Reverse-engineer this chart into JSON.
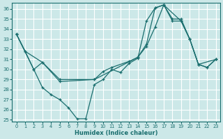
{
  "xlabel": "Humidex (Indice chaleur)",
  "bg_color": "#cce8e8",
  "grid_color": "#ffffff",
  "line_color": "#1a6e6e",
  "xlim": [
    -0.5,
    23.5
  ],
  "ylim": [
    24.8,
    36.6
  ],
  "yticks": [
    25,
    26,
    27,
    28,
    29,
    30,
    31,
    32,
    33,
    34,
    35,
    36
  ],
  "xticks": [
    0,
    1,
    2,
    3,
    4,
    5,
    6,
    7,
    8,
    9,
    10,
    11,
    12,
    13,
    14,
    15,
    16,
    17,
    18,
    19,
    20,
    21,
    22,
    23
  ],
  "line_zigzag_x": [
    0,
    1,
    2,
    3,
    4,
    5,
    6,
    7,
    8,
    9,
    10,
    11,
    12,
    13,
    14,
    15,
    16,
    17,
    18,
    19,
    20,
    21,
    22,
    23
  ],
  "line_zigzag_y": [
    33.5,
    31.8,
    30.0,
    28.2,
    27.5,
    27.0,
    26.2,
    25.1,
    25.1,
    28.5,
    29.0,
    30.0,
    29.7,
    30.6,
    31.1,
    34.8,
    36.1,
    36.4,
    35.0,
    35.0,
    33.0,
    30.5,
    30.2,
    31.0
  ],
  "line_diagonal_x": [
    0,
    2,
    3,
    5,
    9,
    10,
    11,
    13,
    14,
    15,
    16,
    17,
    18,
    19,
    20,
    21,
    22,
    23
  ],
  "line_diagonal_y": [
    33.5,
    30.0,
    30.7,
    29.0,
    29.0,
    29.8,
    30.2,
    30.8,
    31.2,
    32.3,
    34.2,
    36.4,
    34.8,
    34.8,
    33.0,
    30.5,
    30.2,
    31.0
  ],
  "line_upper_x": [
    0,
    1,
    3,
    5,
    9,
    14,
    15,
    16,
    17,
    19,
    20,
    21,
    23
  ],
  "line_upper_y": [
    33.5,
    31.8,
    30.7,
    28.8,
    29.0,
    31.2,
    32.5,
    36.1,
    36.4,
    34.8,
    33.0,
    30.5,
    31.0
  ]
}
